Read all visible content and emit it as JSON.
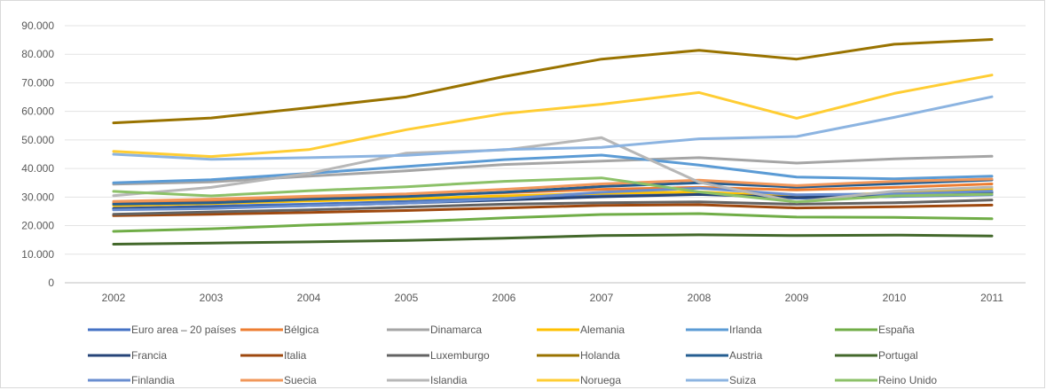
{
  "chart_data": {
    "type": "line",
    "title": "",
    "xlabel": "",
    "ylabel": "",
    "x": [
      "2002",
      "2003",
      "2004",
      "2005",
      "2006",
      "2007",
      "2008",
      "2009",
      "2010",
      "2011"
    ],
    "ylim": [
      0,
      90000
    ],
    "yticks": [
      "0",
      "10.000",
      "20.000",
      "30.000",
      "40.000",
      "50.000",
      "60.000",
      "70.000",
      "80.000",
      "90.000"
    ],
    "grid": "horizontal",
    "legend_position": "bottom",
    "series": [
      {
        "name": "Euro area – 20 países",
        "color": "#4472C4",
        "values": [
          26000,
          26800,
          27500,
          28500,
          29700,
          31000,
          31400,
          29600,
          30200,
          30800
        ]
      },
      {
        "name": "Bélgica",
        "color": "#ED7D31",
        "values": [
          28000,
          28800,
          29700,
          30500,
          31500,
          32700,
          33400,
          32500,
          33400,
          34600
        ]
      },
      {
        "name": "Dinamarca",
        "color": "#A5A5A5",
        "values": [
          34500,
          35300,
          37300,
          39200,
          41400,
          42600,
          43800,
          41900,
          43400,
          44300
        ]
      },
      {
        "name": "Alemania",
        "color": "#FFC000",
        "values": [
          27000,
          27700,
          28600,
          29400,
          30400,
          31300,
          31800,
          30200,
          31500,
          32800
        ]
      },
      {
        "name": "Irlanda",
        "color": "#5B9BD5",
        "values": [
          35000,
          36100,
          38300,
          40700,
          43100,
          44700,
          41200,
          37000,
          36400,
          37300
        ]
      },
      {
        "name": "España",
        "color": "#70AD47",
        "values": [
          18000,
          18900,
          20200,
          21300,
          22700,
          23900,
          24200,
          23000,
          22900,
          22400
        ]
      },
      {
        "name": "Francia",
        "color": "#264478",
        "values": [
          26000,
          26300,
          27000,
          27900,
          29000,
          30100,
          30900,
          29900,
          30600,
          31600
        ]
      },
      {
        "name": "Italia",
        "color": "#9E480E",
        "values": [
          23500,
          24000,
          24600,
          25300,
          26200,
          27100,
          27300,
          26200,
          26600,
          27200
        ]
      },
      {
        "name": "Luxemburgo",
        "color": "#636363",
        "values": [
          24000,
          24800,
          25500,
          26500,
          27500,
          28000,
          28300,
          27500,
          28000,
          29000
        ]
      },
      {
        "name": "Holanda",
        "color": "#997300",
        "values": [
          56000,
          57700,
          61300,
          65100,
          72200,
          78300,
          81400,
          78300,
          83500,
          85200
        ]
      },
      {
        "name": "Austria",
        "color": "#255E91",
        "values": [
          27500,
          28000,
          29200,
          30200,
          31700,
          33700,
          35000,
          33500,
          34700,
          36000
        ]
      },
      {
        "name": "Portugal",
        "color": "#43682B",
        "values": [
          13500,
          13900,
          14300,
          14800,
          15600,
          16500,
          16800,
          16500,
          16700,
          16400
        ]
      },
      {
        "name": "Finlandia",
        "color": "#698ED0",
        "values": [
          25500,
          26000,
          27000,
          27900,
          29400,
          31700,
          33100,
          30800,
          31100,
          32100
        ]
      },
      {
        "name": "Suecia",
        "color": "#F1975A",
        "values": [
          28500,
          29300,
          30300,
          31100,
          32700,
          34600,
          35900,
          34000,
          35500,
          36300
        ]
      },
      {
        "name": "Islandia",
        "color": "#B7B7B7",
        "values": [
          30500,
          33400,
          38300,
          45400,
          46500,
          50800,
          35200,
          28300,
          32100,
          33500
        ]
      },
      {
        "name": "Noruega",
        "color": "#FFCD33",
        "values": [
          46000,
          44200,
          46600,
          53600,
          59200,
          62500,
          66600,
          57600,
          66300,
          72700
        ]
      },
      {
        "name": "Suiza",
        "color": "#8CB4E1",
        "values": [
          45000,
          43200,
          43800,
          44600,
          46600,
          47400,
          50400,
          51200,
          57900,
          65100
        ]
      },
      {
        "name": "Reino Unido",
        "color": "#8CC168",
        "values": [
          32000,
          30400,
          32200,
          33600,
          35500,
          36700,
          31800,
          28300,
          30400,
          31000
        ]
      }
    ]
  }
}
